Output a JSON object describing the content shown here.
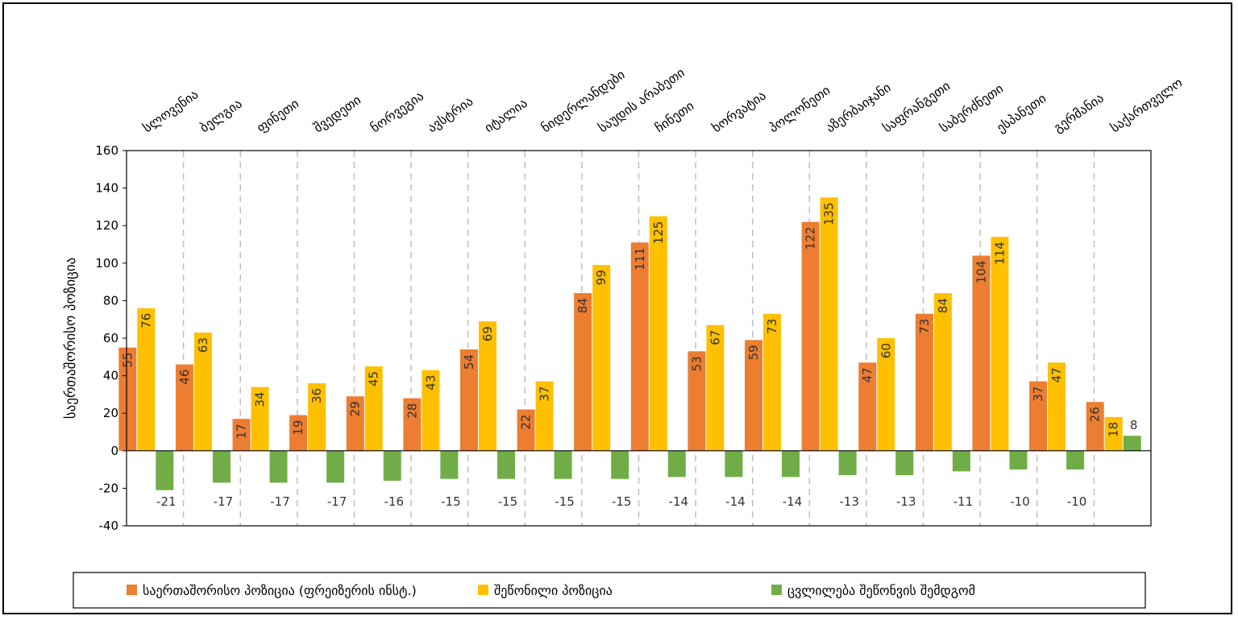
{
  "chart_data": {
    "type": "bar",
    "title": "",
    "xlabel": "",
    "ylabel": "საერთაშორისო პოზიცია",
    "ylim": [
      -40,
      160
    ],
    "yticks": [
      -40,
      -20,
      0,
      20,
      40,
      60,
      80,
      100,
      120,
      140,
      160
    ],
    "grid": "vertical-dashed",
    "legend_position": "bottom",
    "categories": [
      "სლოვენია",
      "ბელგია",
      "ფინეთი",
      "შვედეთი",
      "ნორვეგია",
      "ავსტრია",
      "იტალია",
      "ნიდერლანდები",
      "საუდის არაბეთი",
      "ჩინეთი",
      "ხორვატია",
      "პოლონეთი",
      "აზერბაიჯანი",
      "საფრანგეთი",
      "საბერძნეთი",
      "ესპანეთი",
      "გერმანია",
      "საქართველო"
    ],
    "series": [
      {
        "name": "საერთაშორისო პოზიცია (ფრეიზერის ინსტ.)",
        "color": "#ED7D31",
        "values": [
          55,
          46,
          17,
          19,
          29,
          28,
          54,
          22,
          84,
          111,
          53,
          59,
          122,
          47,
          73,
          104,
          37,
          26
        ]
      },
      {
        "name": "შეწონილი პოზიცია",
        "color": "#FFC000",
        "values": [
          76,
          63,
          34,
          36,
          45,
          43,
          69,
          37,
          99,
          125,
          67,
          73,
          135,
          60,
          84,
          114,
          47,
          18
        ]
      },
      {
        "name": "ცვლილება შეწონვის შემდგომ",
        "color": "#70AD47",
        "values": [
          -21,
          -17,
          -17,
          -17,
          -16,
          -15,
          -15,
          -15,
          -15,
          -14,
          -14,
          -14,
          -13,
          -13,
          -11,
          -10,
          -10,
          8
        ]
      }
    ]
  }
}
